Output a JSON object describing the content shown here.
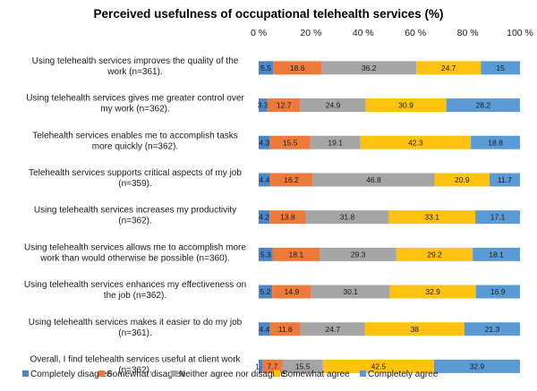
{
  "chart_data": {
    "type": "bar",
    "orientation": "horizontal",
    "stacked": true,
    "title": "Perceived usefulness of occupational telehealth services (%)",
    "xlim": [
      0,
      100
    ],
    "x_ticks": [
      "0 %",
      "20 %",
      "40 %",
      "60 %",
      "80 %",
      "100 %"
    ],
    "grid": false,
    "legend_position": "bottom",
    "categories": [
      [
        "Using telehealth services improves the quality of the",
        "work (n=361)."
      ],
      [
        "Using telehealth services gives me greater control over",
        "my work (n=362)."
      ],
      [
        "Telehealth services enables me to accomplish tasks",
        "more quickly (n=362)."
      ],
      [
        "Telehealth services supports critical aspects of my job",
        "(n=359)."
      ],
      [
        "Using telehealth services increases my productivity",
        "(n=362)."
      ],
      [
        "Using telehealth services allows me to accomplish more",
        "work than would otherwise be possible (n=360)."
      ],
      [
        "Using telehealth services enhances my effectiveness on",
        "the job (n=362)."
      ],
      [
        "Using telehealth services makes it easier to do my job",
        "(n=361)."
      ],
      [
        "Overall, I find telehealth services useful at client work",
        "(n=362)."
      ]
    ],
    "series": [
      {
        "name": "Completely disagree",
        "color": "#4a86c8",
        "values": [
          5.5,
          3.3,
          4.3,
          4.4,
          4.2,
          5.3,
          5.2,
          4.4,
          1.4
        ],
        "labels": [
          "5.5",
          "3.3",
          "4.3",
          "4.4",
          "4.2",
          "5.3",
          "5.2",
          "4.4",
          "1.4"
        ]
      },
      {
        "name": "Somewhat disagree",
        "color": "#ec7a3a",
        "values": [
          18.6,
          12.7,
          15.5,
          16.2,
          13.8,
          18.1,
          14.9,
          11.6,
          7.7
        ],
        "labels": [
          "18.6",
          "12.7",
          "15.5",
          "16.2",
          "13.8",
          "18.1",
          "14.9",
          "11.6",
          "7.7"
        ]
      },
      {
        "name": "Neither agree nor disagree",
        "color": "#a5a5a5",
        "values": [
          36.2,
          24.9,
          19.1,
          46.8,
          31.8,
          29.3,
          30.1,
          24.7,
          15.5
        ],
        "labels": [
          "36.2",
          "24.9",
          "19.1",
          "46.8",
          "31.8",
          "29.3",
          "30.1",
          "24.7",
          "15.5"
        ]
      },
      {
        "name": "Somewhat agree",
        "color": "#fec20f",
        "values": [
          24.7,
          30.9,
          42.3,
          20.9,
          33.1,
          29.2,
          32.9,
          38.0,
          42.5
        ],
        "labels": [
          "24.7",
          "30.9",
          "42.3",
          "20.9",
          "33.1",
          "29.2",
          "32.9",
          "38",
          "42.5"
        ]
      },
      {
        "name": "Completely agree",
        "color": "#5b9bd5",
        "values": [
          15.0,
          28.2,
          18.8,
          11.7,
          17.1,
          18.1,
          16.9,
          21.3,
          32.9
        ],
        "labels": [
          "15",
          "28.2",
          "18.8",
          "11.7",
          "17.1",
          "18.1",
          "16.9",
          "21.3",
          "32.9"
        ]
      }
    ]
  }
}
